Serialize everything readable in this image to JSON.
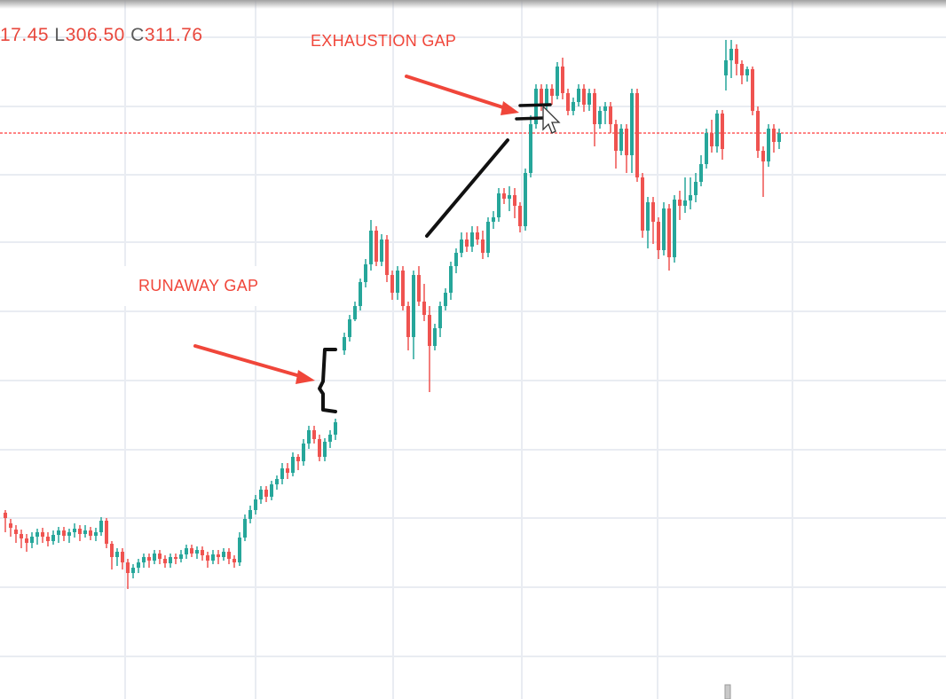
{
  "ohlc": {
    "open_fragment": "17.45",
    "low_key": "L",
    "low": "306.50",
    "close_key": "C",
    "close": "311.76"
  },
  "annotations": {
    "exhaustion_gap": "EXHAUSTION GAP",
    "runaway_gap": "RUNAWAY GAP"
  },
  "colors": {
    "up": "#26a69a",
    "down": "#ef5350",
    "annotation": "#f0463a",
    "price_line": "#ff3b3b",
    "grid": "#e9ecf2"
  },
  "chart_data": {
    "type": "candlestick",
    "title": "",
    "xlabel": "",
    "ylabel": "",
    "current_price": 311.76,
    "series": [
      {
        "candles": [
          [
            6,
            578,
            584,
            575,
            600
          ],
          [
            12,
            590,
            595,
            585,
            605
          ],
          [
            18,
            597,
            602,
            592,
            612
          ],
          [
            24,
            602,
            607,
            597,
            618
          ],
          [
            30,
            607,
            612,
            602,
            622
          ],
          [
            36,
            612,
            605,
            600,
            618
          ],
          [
            42,
            605,
            600,
            596,
            614
          ],
          [
            48,
            600,
            605,
            595,
            612
          ],
          [
            54,
            605,
            610,
            600,
            616
          ],
          [
            60,
            610,
            603,
            598,
            614
          ],
          [
            66,
            603,
            598,
            594,
            612
          ],
          [
            72,
            598,
            604,
            594,
            610
          ],
          [
            78,
            604,
            600,
            596,
            612
          ],
          [
            84,
            600,
            596,
            590,
            606
          ],
          [
            90,
            596,
            602,
            592,
            610
          ],
          [
            96,
            602,
            598,
            592,
            606
          ],
          [
            102,
            598,
            604,
            594,
            609
          ],
          [
            108,
            604,
            600,
            595,
            610
          ],
          [
            114,
            600,
            587,
            583,
            604
          ],
          [
            120,
            587,
            613,
            584,
            618
          ],
          [
            126,
            613,
            628,
            610,
            642
          ],
          [
            132,
            628,
            622,
            618,
            638
          ],
          [
            138,
            622,
            634,
            618,
            642
          ],
          [
            144,
            634,
            646,
            630,
            664
          ],
          [
            150,
            646,
            640,
            636,
            652
          ],
          [
            156,
            640,
            634,
            630,
            646
          ],
          [
            162,
            634,
            628,
            624,
            640
          ],
          [
            168,
            628,
            632,
            624,
            640
          ],
          [
            174,
            632,
            624,
            620,
            636
          ],
          [
            180,
            624,
            630,
            620,
            636
          ],
          [
            186,
            630,
            635,
            626,
            640
          ],
          [
            192,
            635,
            628,
            624,
            640
          ],
          [
            198,
            628,
            630,
            624,
            636
          ],
          [
            204,
            630,
            625,
            620,
            634
          ],
          [
            210,
            625,
            618,
            614,
            630
          ],
          [
            216,
            618,
            624,
            614,
            628
          ],
          [
            222,
            624,
            620,
            616,
            630
          ],
          [
            228,
            620,
            626,
            616,
            632
          ],
          [
            234,
            626,
            632,
            622,
            640
          ],
          [
            240,
            632,
            625,
            620,
            636
          ],
          [
            246,
            625,
            628,
            620,
            636
          ],
          [
            252,
            628,
            622,
            618,
            632
          ],
          [
            258,
            622,
            630,
            618,
            636
          ],
          [
            264,
            630,
            634,
            626,
            640
          ],
          [
            270,
            634,
            606,
            600,
            638
          ],
          [
            276,
            606,
            585,
            580,
            610
          ],
          [
            282,
            585,
            575,
            570,
            590
          ],
          [
            288,
            575,
            563,
            558,
            580
          ],
          [
            294,
            563,
            552,
            548,
            568
          ],
          [
            300,
            552,
            560,
            548,
            566
          ],
          [
            306,
            560,
            546,
            542,
            564
          ],
          [
            312,
            546,
            540,
            536,
            552
          ],
          [
            318,
            540,
            528,
            522,
            546
          ],
          [
            324,
            528,
            533,
            522,
            540
          ],
          [
            330,
            533,
            515,
            510,
            537
          ],
          [
            336,
            515,
            520,
            512,
            530
          ],
          [
            342,
            520,
            500,
            495,
            525
          ],
          [
            348,
            500,
            485,
            480,
            506
          ],
          [
            354,
            485,
            495,
            480,
            500
          ],
          [
            360,
            495,
            515,
            490,
            520
          ],
          [
            366,
            515,
            498,
            494,
            520
          ],
          [
            372,
            498,
            490,
            485,
            505
          ],
          [
            378,
            490,
            476,
            472,
            496
          ],
          [
            388,
            395,
            380,
            375,
            400
          ],
          [
            394,
            380,
            360,
            355,
            385
          ],
          [
            400,
            360,
            345,
            340,
            362
          ],
          [
            406,
            345,
            318,
            314,
            350
          ],
          [
            412,
            318,
            298,
            292,
            324
          ],
          [
            418,
            298,
            260,
            248,
            305
          ],
          [
            424,
            260,
            295,
            255,
            300
          ],
          [
            430,
            295,
            270,
            264,
            300
          ],
          [
            436,
            270,
            310,
            265,
            318
          ],
          [
            442,
            310,
            330,
            305,
            338
          ],
          [
            448,
            330,
            305,
            300,
            338
          ],
          [
            454,
            305,
            345,
            300,
            350
          ],
          [
            460,
            345,
            380,
            340,
            395
          ],
          [
            466,
            380,
            310,
            305,
            405
          ],
          [
            472,
            310,
            340,
            300,
            345
          ],
          [
            478,
            340,
            355,
            320,
            362
          ],
          [
            484,
            355,
            390,
            345,
            442
          ],
          [
            490,
            390,
            370,
            365,
            395
          ],
          [
            496,
            370,
            345,
            340,
            380
          ],
          [
            502,
            345,
            330,
            325,
            350
          ],
          [
            508,
            330,
            300,
            295,
            338
          ],
          [
            514,
            300,
            285,
            280,
            308
          ],
          [
            520,
            285,
            270,
            262,
            290
          ],
          [
            526,
            270,
            278,
            262,
            284
          ],
          [
            532,
            278,
            262,
            255,
            284
          ],
          [
            538,
            262,
            270,
            255,
            276
          ],
          [
            544,
            270,
            285,
            260,
            292
          ],
          [
            550,
            285,
            250,
            245,
            290
          ],
          [
            556,
            250,
            245,
            238,
            258
          ],
          [
            562,
            245,
            218,
            212,
            250
          ],
          [
            568,
            218,
            224,
            212,
            230
          ],
          [
            574,
            224,
            220,
            210,
            238
          ],
          [
            580,
            220,
            232,
            212,
            246
          ],
          [
            586,
            232,
            255,
            228,
            262
          ],
          [
            592,
            255,
            195,
            190,
            260
          ],
          [
            598,
            195,
            140,
            130,
            200
          ],
          [
            604,
            140,
            100,
            95,
            145
          ],
          [
            610,
            100,
            120,
            95,
            125
          ],
          [
            616,
            120,
            100,
            95,
            125
          ],
          [
            622,
            100,
            108,
            95,
            118
          ],
          [
            628,
            108,
            75,
            70,
            112
          ],
          [
            634,
            75,
            105,
            65,
            112
          ],
          [
            640,
            105,
            125,
            100,
            130
          ],
          [
            646,
            125,
            115,
            110,
            130
          ],
          [
            652,
            115,
            100,
            95,
            120
          ],
          [
            658,
            100,
            118,
            95,
            126
          ],
          [
            664,
            118,
            105,
            100,
            125
          ],
          [
            670,
            105,
            140,
            100,
            165
          ],
          [
            676,
            140,
            125,
            120,
            145
          ],
          [
            682,
            125,
            120,
            115,
            140
          ],
          [
            688,
            120,
            140,
            115,
            150
          ],
          [
            694,
            140,
            170,
            135,
            190
          ],
          [
            700,
            170,
            145,
            140,
            175
          ],
          [
            706,
            145,
            175,
            140,
            195
          ],
          [
            712,
            175,
            105,
            100,
            195
          ],
          [
            718,
            105,
            200,
            100,
            205
          ],
          [
            724,
            200,
            260,
            195,
            268
          ],
          [
            730,
            260,
            228,
            222,
            280
          ],
          [
            736,
            228,
            250,
            222,
            275
          ],
          [
            742,
            250,
            282,
            245,
            292
          ],
          [
            748,
            282,
            235,
            228,
            288
          ],
          [
            754,
            235,
            290,
            230,
            305
          ],
          [
            760,
            290,
            225,
            220,
            296
          ],
          [
            766,
            225,
            232,
            215,
            248
          ],
          [
            772,
            232,
            226,
            200,
            240
          ],
          [
            778,
            226,
            220,
            200,
            236
          ],
          [
            784,
            220,
            205,
            195,
            228
          ],
          [
            790,
            205,
            185,
            175,
            210
          ],
          [
            796,
            185,
            150,
            145,
            190
          ],
          [
            802,
            150,
            165,
            135,
            172
          ],
          [
            808,
            165,
            128,
            124,
            172
          ],
          [
            814,
            128,
            168,
            124,
            180
          ],
          [
            818,
            85,
            68,
            45,
            102
          ],
          [
            824,
            68,
            55,
            45,
            88
          ],
          [
            830,
            55,
            72,
            50,
            85
          ],
          [
            836,
            72,
            85,
            68,
            95
          ],
          [
            842,
            85,
            78,
            75,
            92
          ],
          [
            848,
            78,
            125,
            75,
            130
          ],
          [
            854,
            125,
            170,
            120,
            178
          ],
          [
            860,
            170,
            182,
            165,
            222
          ],
          [
            866,
            182,
            145,
            140,
            188
          ],
          [
            872,
            145,
            160,
            140,
            172
          ],
          [
            878,
            160,
            150,
            145,
            168
          ]
        ]
      }
    ]
  }
}
